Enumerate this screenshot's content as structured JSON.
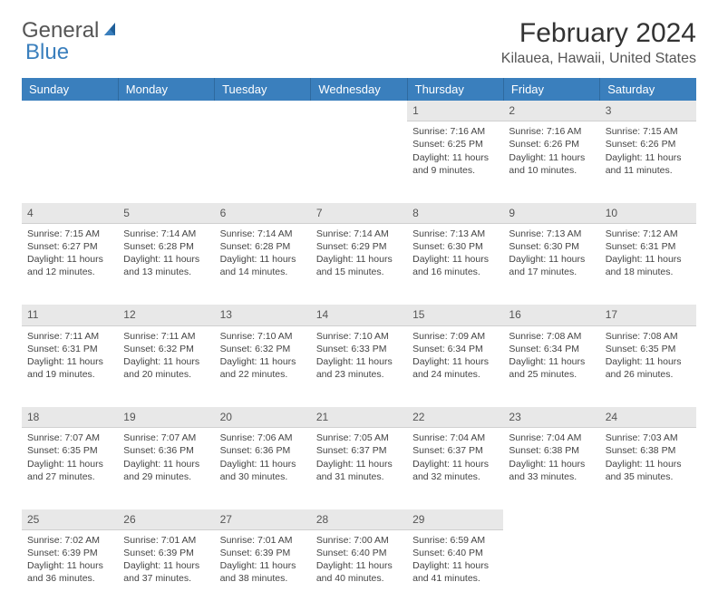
{
  "brand": {
    "part1": "General",
    "part2": "Blue"
  },
  "title": "February 2024",
  "location": "Kilauea, Hawaii, United States",
  "colors": {
    "header_bg": "#3a7fbd",
    "header_text": "#ffffff",
    "daynum_bg": "#e8e8e8",
    "text": "#444444",
    "page_bg": "#ffffff"
  },
  "typography": {
    "title_fontsize": 30,
    "location_fontsize": 16,
    "weekday_fontsize": 13,
    "cell_fontsize": 10.5,
    "font_family": "Arial"
  },
  "weekdays": [
    "Sunday",
    "Monday",
    "Tuesday",
    "Wednesday",
    "Thursday",
    "Friday",
    "Saturday"
  ],
  "weeks": [
    {
      "days": [
        null,
        null,
        null,
        null,
        {
          "n": "1",
          "sunrise": "Sunrise: 7:16 AM",
          "sunset": "Sunset: 6:25 PM",
          "daylight1": "Daylight: 11 hours",
          "daylight2": "and 9 minutes."
        },
        {
          "n": "2",
          "sunrise": "Sunrise: 7:16 AM",
          "sunset": "Sunset: 6:26 PM",
          "daylight1": "Daylight: 11 hours",
          "daylight2": "and 10 minutes."
        },
        {
          "n": "3",
          "sunrise": "Sunrise: 7:15 AM",
          "sunset": "Sunset: 6:26 PM",
          "daylight1": "Daylight: 11 hours",
          "daylight2": "and 11 minutes."
        }
      ]
    },
    {
      "days": [
        {
          "n": "4",
          "sunrise": "Sunrise: 7:15 AM",
          "sunset": "Sunset: 6:27 PM",
          "daylight1": "Daylight: 11 hours",
          "daylight2": "and 12 minutes."
        },
        {
          "n": "5",
          "sunrise": "Sunrise: 7:14 AM",
          "sunset": "Sunset: 6:28 PM",
          "daylight1": "Daylight: 11 hours",
          "daylight2": "and 13 minutes."
        },
        {
          "n": "6",
          "sunrise": "Sunrise: 7:14 AM",
          "sunset": "Sunset: 6:28 PM",
          "daylight1": "Daylight: 11 hours",
          "daylight2": "and 14 minutes."
        },
        {
          "n": "7",
          "sunrise": "Sunrise: 7:14 AM",
          "sunset": "Sunset: 6:29 PM",
          "daylight1": "Daylight: 11 hours",
          "daylight2": "and 15 minutes."
        },
        {
          "n": "8",
          "sunrise": "Sunrise: 7:13 AM",
          "sunset": "Sunset: 6:30 PM",
          "daylight1": "Daylight: 11 hours",
          "daylight2": "and 16 minutes."
        },
        {
          "n": "9",
          "sunrise": "Sunrise: 7:13 AM",
          "sunset": "Sunset: 6:30 PM",
          "daylight1": "Daylight: 11 hours",
          "daylight2": "and 17 minutes."
        },
        {
          "n": "10",
          "sunrise": "Sunrise: 7:12 AM",
          "sunset": "Sunset: 6:31 PM",
          "daylight1": "Daylight: 11 hours",
          "daylight2": "and 18 minutes."
        }
      ]
    },
    {
      "days": [
        {
          "n": "11",
          "sunrise": "Sunrise: 7:11 AM",
          "sunset": "Sunset: 6:31 PM",
          "daylight1": "Daylight: 11 hours",
          "daylight2": "and 19 minutes."
        },
        {
          "n": "12",
          "sunrise": "Sunrise: 7:11 AM",
          "sunset": "Sunset: 6:32 PM",
          "daylight1": "Daylight: 11 hours",
          "daylight2": "and 20 minutes."
        },
        {
          "n": "13",
          "sunrise": "Sunrise: 7:10 AM",
          "sunset": "Sunset: 6:32 PM",
          "daylight1": "Daylight: 11 hours",
          "daylight2": "and 22 minutes."
        },
        {
          "n": "14",
          "sunrise": "Sunrise: 7:10 AM",
          "sunset": "Sunset: 6:33 PM",
          "daylight1": "Daylight: 11 hours",
          "daylight2": "and 23 minutes."
        },
        {
          "n": "15",
          "sunrise": "Sunrise: 7:09 AM",
          "sunset": "Sunset: 6:34 PM",
          "daylight1": "Daylight: 11 hours",
          "daylight2": "and 24 minutes."
        },
        {
          "n": "16",
          "sunrise": "Sunrise: 7:08 AM",
          "sunset": "Sunset: 6:34 PM",
          "daylight1": "Daylight: 11 hours",
          "daylight2": "and 25 minutes."
        },
        {
          "n": "17",
          "sunrise": "Sunrise: 7:08 AM",
          "sunset": "Sunset: 6:35 PM",
          "daylight1": "Daylight: 11 hours",
          "daylight2": "and 26 minutes."
        }
      ]
    },
    {
      "days": [
        {
          "n": "18",
          "sunrise": "Sunrise: 7:07 AM",
          "sunset": "Sunset: 6:35 PM",
          "daylight1": "Daylight: 11 hours",
          "daylight2": "and 27 minutes."
        },
        {
          "n": "19",
          "sunrise": "Sunrise: 7:07 AM",
          "sunset": "Sunset: 6:36 PM",
          "daylight1": "Daylight: 11 hours",
          "daylight2": "and 29 minutes."
        },
        {
          "n": "20",
          "sunrise": "Sunrise: 7:06 AM",
          "sunset": "Sunset: 6:36 PM",
          "daylight1": "Daylight: 11 hours",
          "daylight2": "and 30 minutes."
        },
        {
          "n": "21",
          "sunrise": "Sunrise: 7:05 AM",
          "sunset": "Sunset: 6:37 PM",
          "daylight1": "Daylight: 11 hours",
          "daylight2": "and 31 minutes."
        },
        {
          "n": "22",
          "sunrise": "Sunrise: 7:04 AM",
          "sunset": "Sunset: 6:37 PM",
          "daylight1": "Daylight: 11 hours",
          "daylight2": "and 32 minutes."
        },
        {
          "n": "23",
          "sunrise": "Sunrise: 7:04 AM",
          "sunset": "Sunset: 6:38 PM",
          "daylight1": "Daylight: 11 hours",
          "daylight2": "and 33 minutes."
        },
        {
          "n": "24",
          "sunrise": "Sunrise: 7:03 AM",
          "sunset": "Sunset: 6:38 PM",
          "daylight1": "Daylight: 11 hours",
          "daylight2": "and 35 minutes."
        }
      ]
    },
    {
      "days": [
        {
          "n": "25",
          "sunrise": "Sunrise: 7:02 AM",
          "sunset": "Sunset: 6:39 PM",
          "daylight1": "Daylight: 11 hours",
          "daylight2": "and 36 minutes."
        },
        {
          "n": "26",
          "sunrise": "Sunrise: 7:01 AM",
          "sunset": "Sunset: 6:39 PM",
          "daylight1": "Daylight: 11 hours",
          "daylight2": "and 37 minutes."
        },
        {
          "n": "27",
          "sunrise": "Sunrise: 7:01 AM",
          "sunset": "Sunset: 6:39 PM",
          "daylight1": "Daylight: 11 hours",
          "daylight2": "and 38 minutes."
        },
        {
          "n": "28",
          "sunrise": "Sunrise: 7:00 AM",
          "sunset": "Sunset: 6:40 PM",
          "daylight1": "Daylight: 11 hours",
          "daylight2": "and 40 minutes."
        },
        {
          "n": "29",
          "sunrise": "Sunrise: 6:59 AM",
          "sunset": "Sunset: 6:40 PM",
          "daylight1": "Daylight: 11 hours",
          "daylight2": "and 41 minutes."
        },
        null,
        null
      ]
    }
  ]
}
